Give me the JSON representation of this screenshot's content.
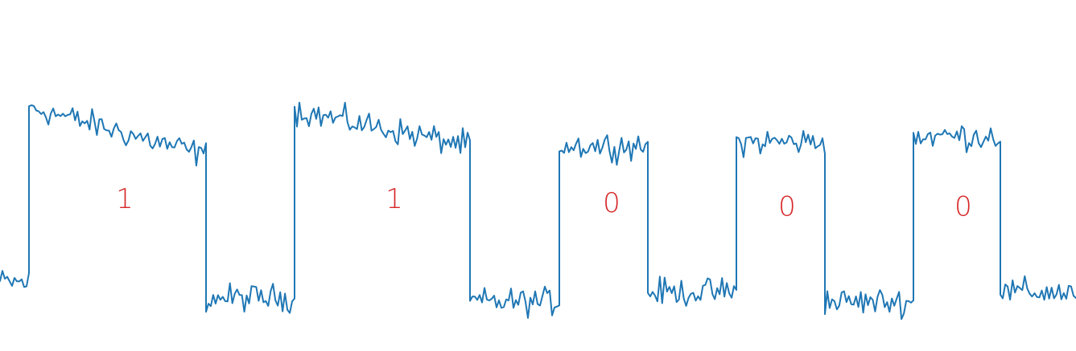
{
  "chart_data": {
    "type": "line",
    "title": "",
    "xlabel": "",
    "ylabel": "",
    "grid": false,
    "axes_visible": false,
    "xlim": [
      0,
      6
    ],
    "ylim": [
      0,
      1.4
    ],
    "colors": {
      "signal": "#1f77b4",
      "annotation": "#d62728"
    },
    "series": [
      {
        "color": "#1f77b4",
        "segments": [
          {
            "x": [
              0.0,
              0.1
            ],
            "level": 0.2
          },
          {
            "x": [
              0.1,
              0.6
            ],
            "level": 1.1,
            "decay_to": 0.85
          },
          {
            "x": [
              0.6,
              1.0
            ],
            "level": 0.12
          },
          {
            "x": [
              1.0,
              1.55
            ],
            "level": 1.08,
            "decay_to": 0.9
          },
          {
            "x": [
              1.55,
              2.0
            ],
            "level": 0.1
          },
          {
            "x": [
              2.0,
              2.55
            ],
            "level": 0.9
          },
          {
            "x": [
              2.55,
              3.0
            ],
            "level": 0.15
          },
          {
            "x": [
              3.0,
              3.55
            ],
            "level": 0.92
          },
          {
            "x": [
              3.55,
              4.0
            ],
            "level": 0.1
          },
          {
            "x": [
              4.0,
              4.55
            ],
            "level": 0.95
          },
          {
            "x": [
              4.55,
              5.0
            ],
            "level": 0.15
          }
        ],
        "noise": 0.06
      }
    ],
    "annotations": [
      {
        "text": "1",
        "x": 0.58,
        "y": 0.62
      },
      {
        "text": "1",
        "x": 1.62,
        "y": 0.62
      },
      {
        "text": "0",
        "x": 2.6,
        "y": 0.6
      },
      {
        "text": "0",
        "x": 3.6,
        "y": 0.58
      },
      {
        "text": "0",
        "x": 4.6,
        "y": 0.58
      }
    ]
  }
}
